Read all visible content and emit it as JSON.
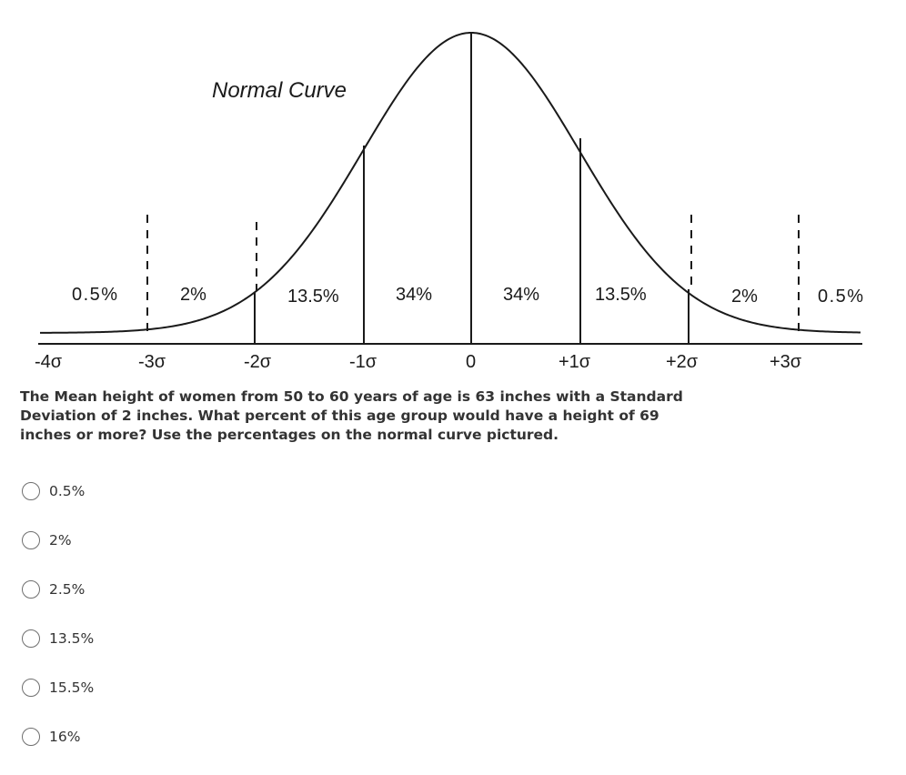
{
  "figure": {
    "title": "Normal Curve",
    "region_percents": [
      "0.5%",
      "2%",
      "13.5%",
      "34%",
      "34%",
      "13.5%",
      "2%",
      "0.5%"
    ],
    "sigma_labels": [
      "-4σ",
      "-3σ",
      "-2σ",
      "-1σ",
      "0",
      "+1σ",
      "+2σ",
      "+3σ"
    ]
  },
  "question": {
    "text": "The Mean height of women from 50 to 60 years of age is 63 inches with a Standard Deviation of 2 inches. What percent of this age group would have a height of 69 inches or more? Use the percentages on the normal curve pictured."
  },
  "options": [
    {
      "label": "0.5%"
    },
    {
      "label": "2%"
    },
    {
      "label": "2.5%"
    },
    {
      "label": "13.5%"
    },
    {
      "label": "15.5%"
    },
    {
      "label": "16%"
    }
  ]
}
